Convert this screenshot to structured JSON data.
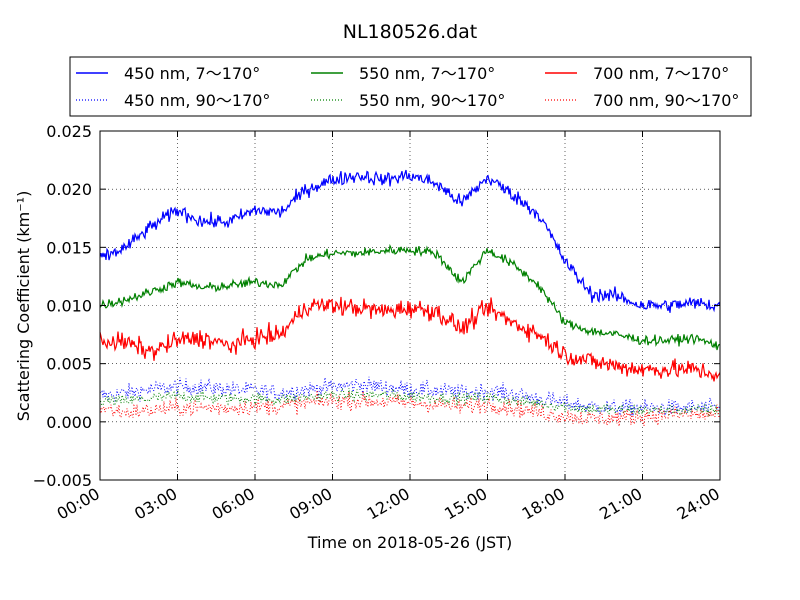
{
  "chart_data": {
    "type": "line",
    "title": "NL180526.dat",
    "xlabel": "Time on 2018-05-26 (JST)",
    "ylabel": "Scattering Coefficient (km⁻¹)",
    "xlim": [
      "00:00",
      "24:00"
    ],
    "ylim": [
      -0.005,
      0.025
    ],
    "grid": true,
    "legend_position": "top (above plot, 3 columns)",
    "x_ticks": [
      "00:00",
      "03:00",
      "06:00",
      "09:00",
      "12:00",
      "15:00",
      "18:00",
      "21:00",
      "24:00"
    ],
    "y_ticks": [
      "−0.005",
      "0.000",
      "0.005",
      "0.010",
      "0.015",
      "0.020",
      "0.025"
    ],
    "x_hours": [
      0,
      1,
      2,
      3,
      4,
      5,
      6,
      7,
      8,
      9,
      10,
      11,
      12,
      13,
      14,
      15,
      16,
      17,
      18,
      19,
      20,
      21,
      22,
      23,
      24
    ],
    "series": [
      {
        "name": "450 nm, 7～170°",
        "color": "#0000ff",
        "style": "solid",
        "noise": 0.0006,
        "values": [
          0.014,
          0.015,
          0.0168,
          0.0182,
          0.0172,
          0.0172,
          0.0182,
          0.018,
          0.02,
          0.0208,
          0.0212,
          0.0208,
          0.0212,
          0.0205,
          0.0188,
          0.021,
          0.0195,
          0.0178,
          0.0138,
          0.011,
          0.0108,
          0.01,
          0.01,
          0.0102,
          0.01
        ]
      },
      {
        "name": "450 nm, 90～170°",
        "color": "#0000ff",
        "style": "dotted",
        "noise": 0.0007,
        "values": [
          0.0022,
          0.0025,
          0.0028,
          0.003,
          0.003,
          0.0028,
          0.0027,
          0.0025,
          0.0028,
          0.003,
          0.0032,
          0.003,
          0.0028,
          0.0027,
          0.0025,
          0.0027,
          0.0024,
          0.002,
          0.0016,
          0.0013,
          0.0012,
          0.0012,
          0.0012,
          0.0012,
          0.0012
        ]
      },
      {
        "name": "550 nm, 7～170°",
        "color": "#008000",
        "style": "solid",
        "noise": 0.0004,
        "values": [
          0.01,
          0.0105,
          0.0112,
          0.012,
          0.0115,
          0.0117,
          0.012,
          0.0118,
          0.014,
          0.0145,
          0.0145,
          0.0147,
          0.0148,
          0.0145,
          0.012,
          0.0148,
          0.0135,
          0.0117,
          0.0085,
          0.0078,
          0.0075,
          0.007,
          0.007,
          0.0072,
          0.0065
        ]
      },
      {
        "name": "550 nm, 90～170°",
        "color": "#008000",
        "style": "dotted",
        "noise": 0.0005,
        "values": [
          0.0018,
          0.0018,
          0.002,
          0.0022,
          0.0021,
          0.002,
          0.002,
          0.0019,
          0.0021,
          0.0023,
          0.0023,
          0.0023,
          0.0022,
          0.0021,
          0.002,
          0.0021,
          0.0018,
          0.0016,
          0.0013,
          0.0011,
          0.001,
          0.001,
          0.001,
          0.001,
          0.001
        ]
      },
      {
        "name": "700 nm, 7～170°",
        "color": "#ff0000",
        "style": "solid",
        "noise": 0.0008,
        "values": [
          0.007,
          0.0068,
          0.006,
          0.007,
          0.0072,
          0.0065,
          0.0072,
          0.0075,
          0.01,
          0.01,
          0.0098,
          0.0095,
          0.0098,
          0.0095,
          0.008,
          0.0098,
          0.0085,
          0.0075,
          0.0058,
          0.0052,
          0.0048,
          0.0045,
          0.0045,
          0.0045,
          0.004
        ]
      },
      {
        "name": "700 nm, 90～170°",
        "color": "#ff0000",
        "style": "dotted",
        "noise": 0.0007,
        "values": [
          0.0012,
          0.0008,
          0.001,
          0.0012,
          0.0012,
          0.0012,
          0.0013,
          0.0013,
          0.0016,
          0.0018,
          0.0018,
          0.0017,
          0.0016,
          0.0015,
          0.0013,
          0.0015,
          0.0012,
          0.0008,
          0.0005,
          0.0003,
          0.0003,
          0.0005,
          0.0006,
          0.0006,
          0.0006
        ]
      }
    ]
  }
}
